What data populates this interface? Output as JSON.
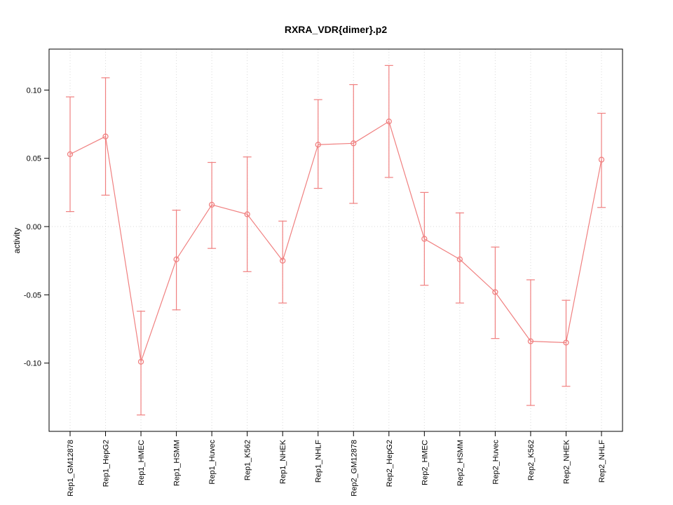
{
  "chart_data": {
    "type": "line",
    "title": "RXRA_VDR{dimer}.p2",
    "ylabel": "activity",
    "xlabel": "",
    "categories": [
      "Rep1_GM12878",
      "Rep1_HepG2",
      "Rep1_HMEC",
      "Rep1_HSMM",
      "Rep1_Huvec",
      "Rep1_K562",
      "Rep1_NHEK",
      "Rep1_NHLF",
      "Rep2_GM12878",
      "Rep2_HepG2",
      "Rep2_HMEC",
      "Rep2_HSMM",
      "Rep2_Huvec",
      "Rep2_K562",
      "Rep2_NHEK",
      "Rep2_NHLF"
    ],
    "values": [
      0.053,
      0.066,
      -0.099,
      -0.024,
      0.016,
      0.009,
      -0.025,
      0.06,
      0.061,
      0.077,
      -0.009,
      -0.024,
      -0.048,
      -0.084,
      -0.085,
      0.049
    ],
    "error_low": [
      0.011,
      0.023,
      -0.138,
      -0.061,
      -0.016,
      -0.033,
      -0.056,
      0.028,
      0.017,
      0.036,
      -0.043,
      -0.056,
      -0.082,
      -0.131,
      -0.117,
      0.014
    ],
    "error_high": [
      0.095,
      0.109,
      -0.062,
      0.012,
      0.047,
      0.051,
      0.004,
      0.093,
      0.104,
      0.118,
      0.025,
      0.01,
      -0.015,
      -0.039,
      -0.054,
      0.083
    ],
    "yticks": [
      -0.1,
      -0.05,
      0.0,
      0.05,
      0.1
    ],
    "ylim": [
      -0.15,
      0.13
    ],
    "grid": true,
    "zero_line": 0,
    "legend_position": "none",
    "colors": {
      "series": "#f08080",
      "grid": "#d9d9d9",
      "axis": "#000000",
      "background": "#ffffff"
    }
  }
}
